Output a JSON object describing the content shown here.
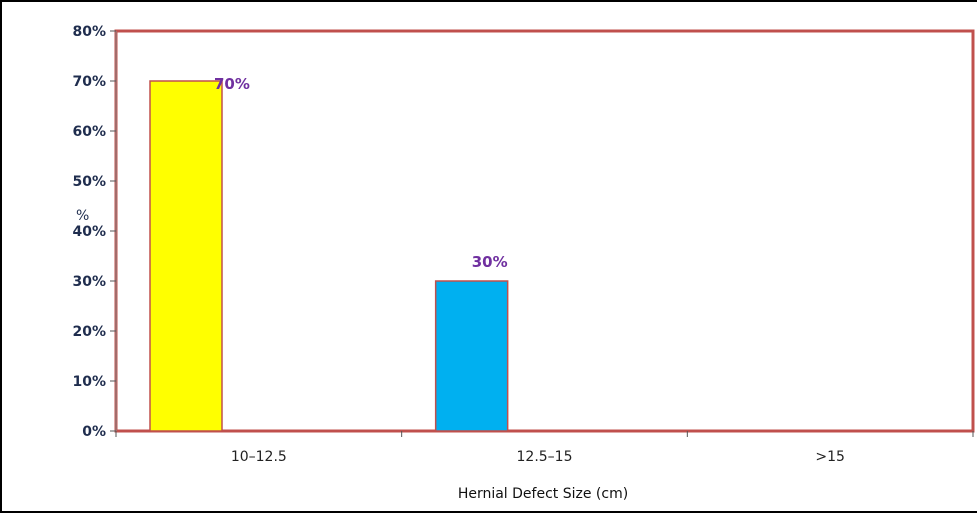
{
  "chart_data": {
    "type": "bar",
    "categories": [
      "10–12.5",
      "12.5–15",
      ">15"
    ],
    "values": [
      70,
      30,
      0
    ],
    "data_labels": [
      "70%",
      "30%",
      ""
    ],
    "xlabel": "Hernial Defect Size (cm)",
    "ylabel": "%",
    "ylim": [
      0,
      80
    ],
    "yticks": [
      "0%",
      "10%",
      "20%",
      "30%",
      "40%",
      "50%",
      "60%",
      "70%",
      "80%"
    ],
    "grid": false,
    "legend": "none"
  },
  "colors": {
    "bars": [
      "#ffff00",
      "#00b0f0",
      "#ffffff"
    ],
    "bar_border": "#c0504d",
    "plot_border": "#c0504d",
    "data_label": "#7030a0",
    "outer_border": "#000000"
  }
}
